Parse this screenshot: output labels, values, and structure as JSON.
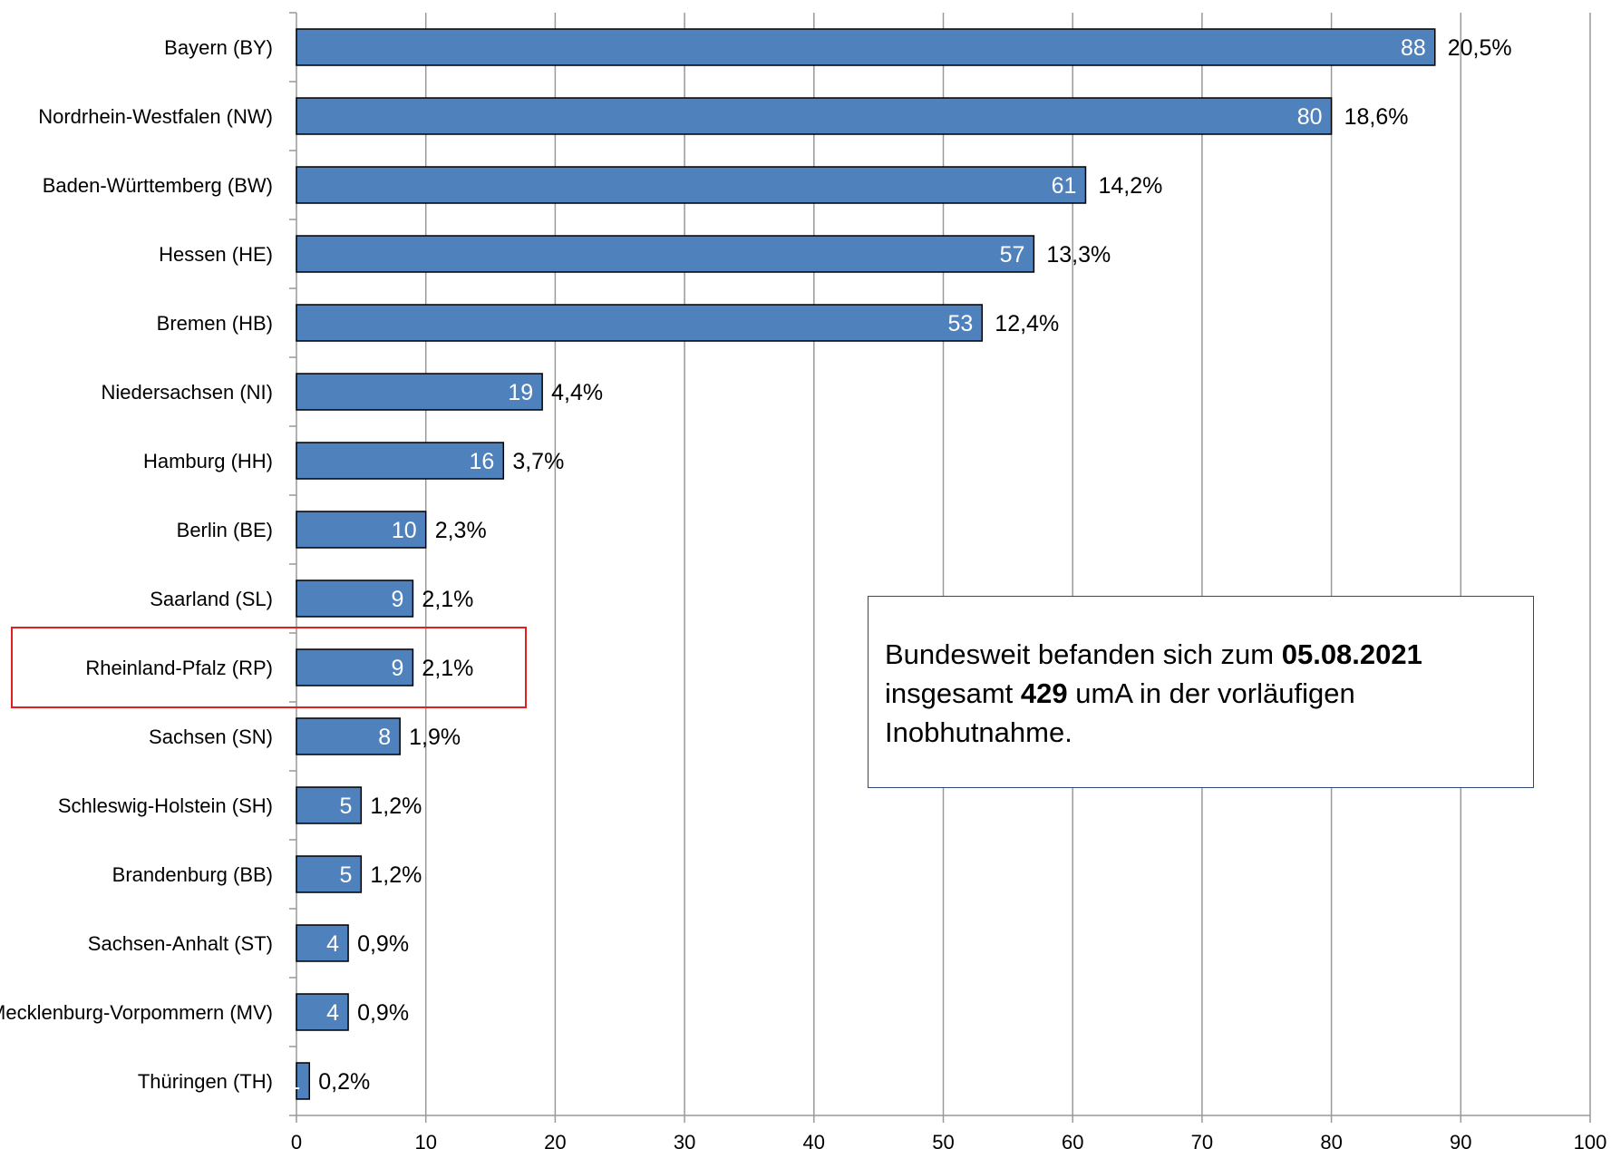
{
  "chart_data": {
    "type": "bar",
    "orientation": "horizontal",
    "categories": [
      "Bayern (BY)",
      "Nordrhein-Westfalen (NW)",
      "Baden-Württemberg (BW)",
      "Hessen (HE)",
      "Bremen (HB)",
      "Niedersachsen (NI)",
      "Hamburg (HH)",
      "Berlin (BE)",
      "Saarland (SL)",
      "Rheinland-Pfalz (RP)",
      "Sachsen (SN)",
      "Schleswig-Holstein (SH)",
      "Brandenburg (BB)",
      "Sachsen-Anhalt (ST)",
      "Mecklenburg-Vorpommern (MV)",
      "Thüringen (TH)"
    ],
    "values": [
      88,
      80,
      61,
      57,
      53,
      19,
      16,
      10,
      9,
      9,
      8,
      5,
      5,
      4,
      4,
      1
    ],
    "percentages": [
      "20,5%",
      "18,6%",
      "14,2%",
      "13,3%",
      "12,4%",
      "4,4%",
      "3,7%",
      "2,3%",
      "2,1%",
      "2,1%",
      "1,9%",
      "1,2%",
      "1,2%",
      "0,9%",
      "0,9%",
      "0,2%"
    ],
    "xlim": [
      0,
      100
    ],
    "xticks": [
      "0",
      "10",
      "20",
      "30",
      "40",
      "50",
      "60",
      "70",
      "80",
      "90",
      "100"
    ],
    "grid": "vertical",
    "highlighted_category": "Rheinland-Pfalz (RP)",
    "colors": {
      "bar": "#4f81bd",
      "bar_edge": "#000000",
      "grid": "#999999",
      "highlight": "#e02020",
      "box_border": "#2e4a74"
    }
  },
  "annotation": {
    "line1_prefix": "Bundesweit befanden sich zum ",
    "line1_bold": "05.08.2021",
    "line2_prefix": "insgesamt ",
    "line2_bold": "429",
    "line2_suffix": " umA in der vorläufigen",
    "line3": "Inobhutnahme."
  }
}
